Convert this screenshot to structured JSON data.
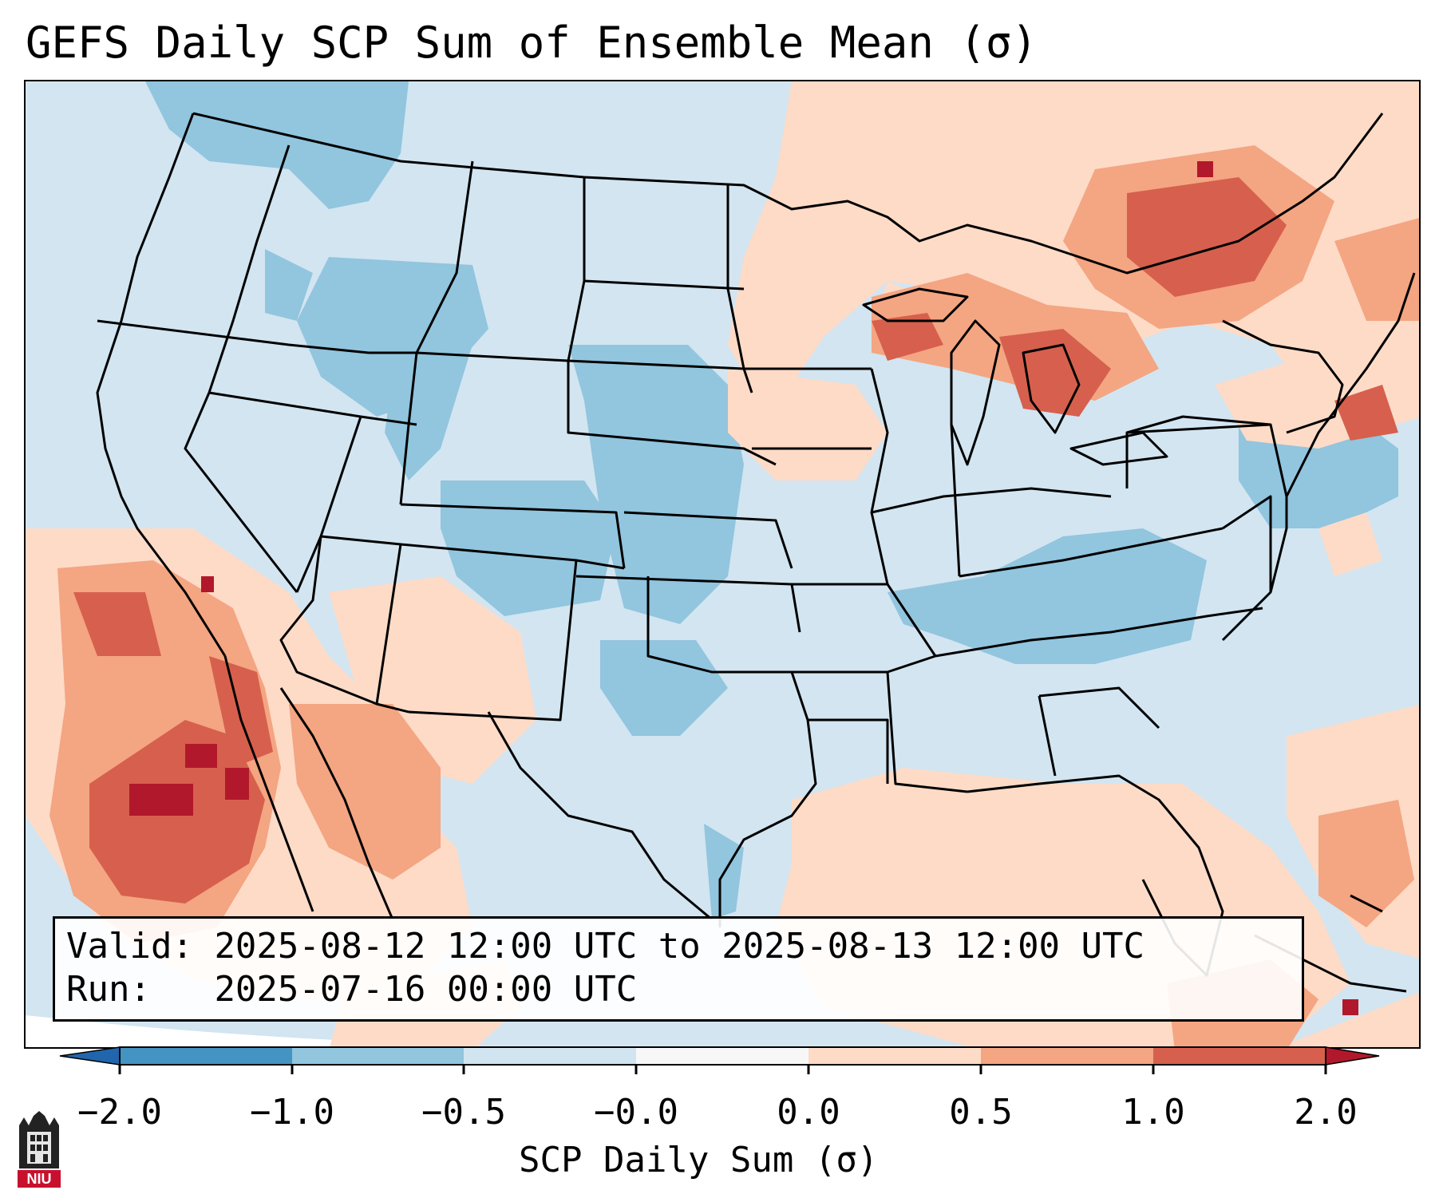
{
  "title": "GEFS Daily SCP Sum of Ensemble Mean (σ)",
  "info": {
    "valid_label": "Valid: ",
    "valid_value": "2025-08-12 12:00 UTC to 2025-08-13 12:00 UTC",
    "run_label": "Run:   ",
    "run_value": "2025-07-16 00:00 UTC"
  },
  "colorbar": {
    "label": "SCP Daily Sum (σ)",
    "ticks": [
      "−2.0",
      "−1.0",
      "−0.5",
      "−0.0",
      "0.0",
      "0.5",
      "1.0",
      "2.0"
    ],
    "bins": [
      {
        "range": "< -2.0",
        "color": "#2166ac"
      },
      {
        "range": "-2.0 to -1.0",
        "color": "#4393c3"
      },
      {
        "range": "-1.0 to -0.5",
        "color": "#92c5de"
      },
      {
        "range": "-0.5 to -0.0",
        "color": "#d1e5f0"
      },
      {
        "range": "-0.0 to 0.0",
        "color": "#f7f7f7"
      },
      {
        "range": "0.0 to 0.5",
        "color": "#fddbc7"
      },
      {
        "range": "0.5 to 1.0",
        "color": "#f4a582"
      },
      {
        "range": "1.0 to 2.0",
        "color": "#d6604d"
      },
      {
        "range": "> 2.0",
        "color": "#b2182b"
      }
    ]
  },
  "logo": {
    "text": "NIU"
  }
}
